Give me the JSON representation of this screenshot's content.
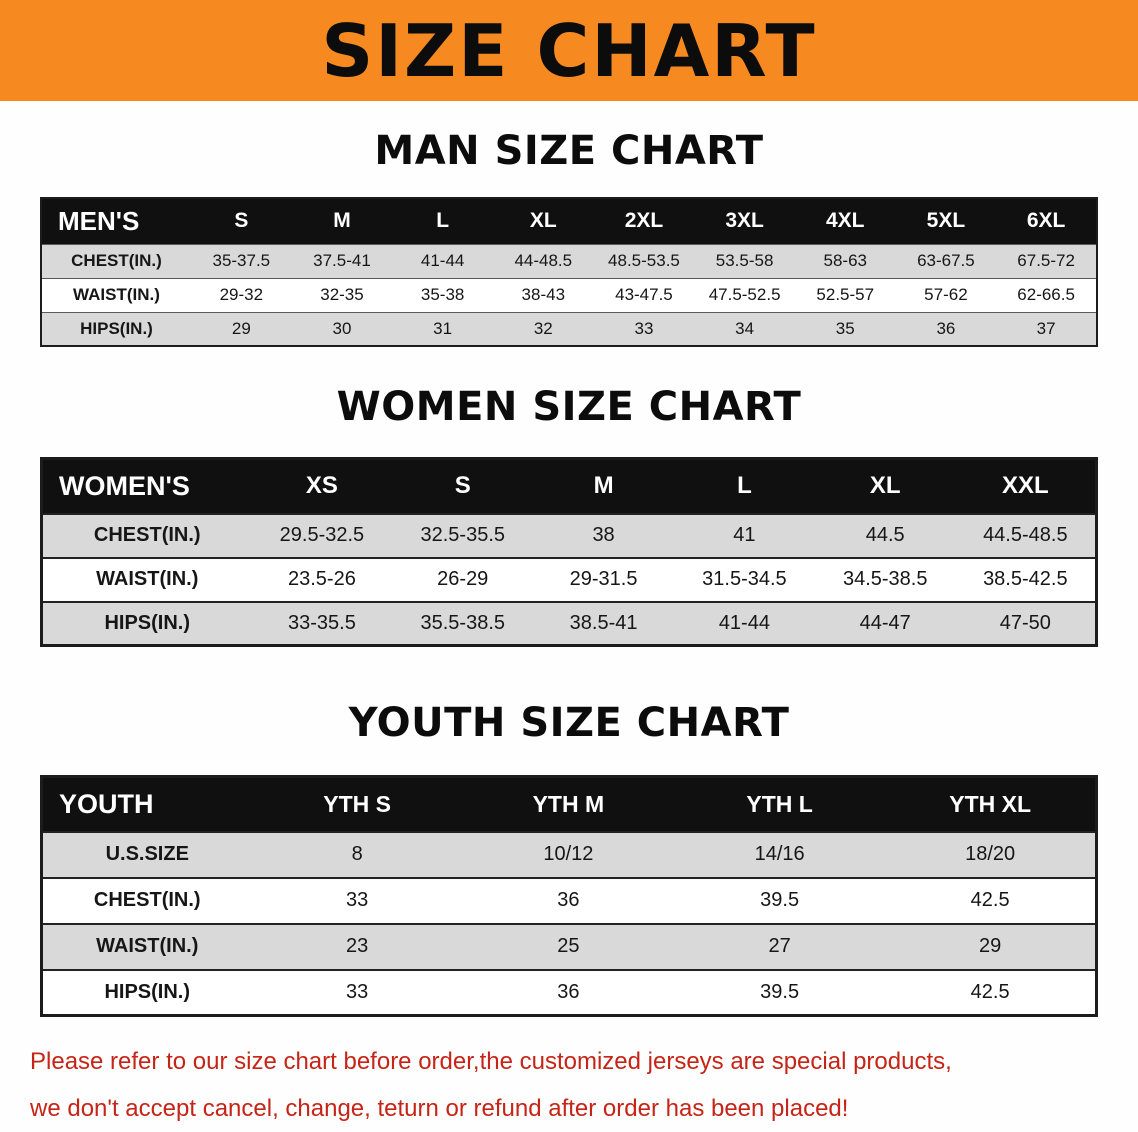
{
  "banner": {
    "title": "SIZE CHART",
    "background_color": "#F6891F"
  },
  "sections": [
    {
      "id": "mens",
      "heading": "MAN SIZE CHART",
      "table": {
        "header": [
          "MEN'S",
          "S",
          "M",
          "L",
          "XL",
          "2XL",
          "3XL",
          "4XL",
          "5XL",
          "6XL"
        ],
        "rows": [
          {
            "label": "CHEST(IN.)",
            "values": [
              "35-37.5",
              "37.5-41",
              "41-44",
              "44-48.5",
              "48.5-53.5",
              "53.5-58",
              "58-63",
              "63-67.5",
              "67.5-72"
            ]
          },
          {
            "label": "WAIST(IN.)",
            "values": [
              "29-32",
              "32-35",
              "35-38",
              "38-43",
              "43-47.5",
              "47.5-52.5",
              "52.5-57",
              "57-62",
              "62-66.5"
            ]
          },
          {
            "label": "HIPS(IN.)",
            "values": [
              "29",
              "30",
              "31",
              "32",
              "33",
              "34",
              "35",
              "36",
              "37"
            ]
          }
        ]
      }
    },
    {
      "id": "womens",
      "heading": "WOMEN SIZE CHART",
      "table": {
        "header": [
          "WOMEN'S",
          "XS",
          "S",
          "M",
          "L",
          "XL",
          "XXL"
        ],
        "rows": [
          {
            "label": "CHEST(IN.)",
            "values": [
              "29.5-32.5",
              "32.5-35.5",
              "38",
              "41",
              "44.5",
              "44.5-48.5"
            ]
          },
          {
            "label": "WAIST(IN.)",
            "values": [
              "23.5-26",
              "26-29",
              "29-31.5",
              "31.5-34.5",
              "34.5-38.5",
              "38.5-42.5"
            ]
          },
          {
            "label": "HIPS(IN.)",
            "values": [
              "33-35.5",
              "35.5-38.5",
              "38.5-41",
              "41-44",
              "44-47",
              "47-50"
            ]
          }
        ]
      }
    },
    {
      "id": "youth",
      "heading": "YOUTH SIZE CHART",
      "table": {
        "header": [
          "YOUTH",
          "YTH S",
          "YTH M",
          "YTH L",
          "YTH XL"
        ],
        "rows": [
          {
            "label": "U.S.SIZE",
            "values": [
              "8",
              "10/12",
              "14/16",
              "18/20"
            ]
          },
          {
            "label": "CHEST(IN.)",
            "values": [
              "33",
              "36",
              "39.5",
              "42.5"
            ]
          },
          {
            "label": "WAIST(IN.)",
            "values": [
              "23",
              "25",
              "27",
              "29"
            ]
          },
          {
            "label": "HIPS(IN.)",
            "values": [
              "33",
              "36",
              "39.5",
              "42.5"
            ]
          }
        ]
      }
    }
  ],
  "footer": {
    "line1": "Please refer to our size chart before order,the customized jerseys are special products,",
    "line2": "we don't accept cancel, change, teturn or refund after order has been placed!",
    "text_color": "#C62417"
  }
}
